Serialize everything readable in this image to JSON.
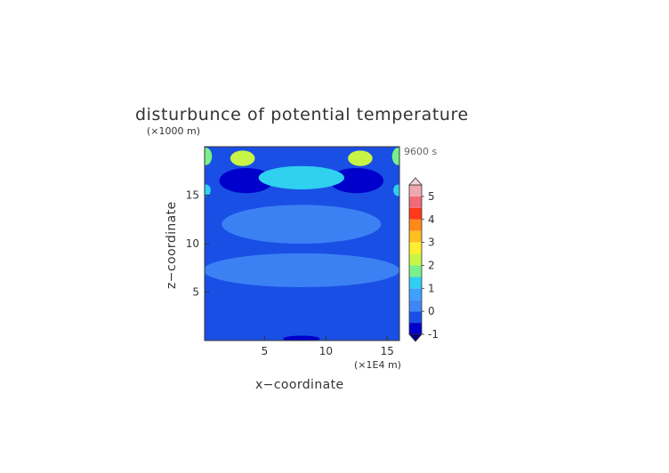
{
  "chart_data": {
    "type": "heatmap",
    "title": "disturbunce of potential temperature",
    "xlabel": "x−coordinate",
    "ylabel": "z−coordinate",
    "x_unit": "(×1E4 m)",
    "y_unit": "(×1000 m)",
    "time_label": "9600 s",
    "xlim": [
      0.1,
      16.0
    ],
    "ylim": [
      0,
      20.0
    ],
    "x_ticks": [
      5,
      10,
      15
    ],
    "y_ticks": [
      5,
      10,
      15
    ],
    "colorbar": {
      "levels": [
        -1,
        -0.5,
        0,
        0.5,
        1,
        1.5,
        2,
        2.5,
        3,
        3.5,
        4,
        4.5,
        5
      ],
      "tick_labels": [
        "-1",
        "0",
        "1",
        "2",
        "3",
        "4",
        "5"
      ],
      "tick_values": [
        -1,
        0,
        1,
        2,
        3,
        4,
        5
      ],
      "colors": [
        "#0000cc",
        "#1a4fe6",
        "#3f86f5",
        "#3ea1ff",
        "#2fd0f0",
        "#7af08a",
        "#c8f545",
        "#ffee30",
        "#ffc020",
        "#ff8a1a",
        "#ff3a18",
        "#f06a78",
        "#f0a8b0"
      ],
      "extend": "both"
    },
    "background_value": -0.4,
    "features": [
      {
        "kind": "band",
        "value": 0.25,
        "y0": 5.5,
        "y1": 9.0,
        "x_center": 8.0,
        "half_width": 8.0
      },
      {
        "kind": "band",
        "value": 0.25,
        "y0": 10.0,
        "y1": 14.0,
        "x_center": 8.0,
        "half_width": 6.5
      },
      {
        "kind": "blob",
        "value": -0.9,
        "x": 3.5,
        "y": 16.5,
        "rx": 2.2,
        "ry": 1.3
      },
      {
        "kind": "blob",
        "value": -0.9,
        "x": 12.5,
        "y": 16.5,
        "rx": 2.2,
        "ry": 1.3
      },
      {
        "kind": "blob",
        "value": 1.2,
        "x": 8.0,
        "y": 16.8,
        "rx": 3.5,
        "ry": 1.2
      },
      {
        "kind": "blob",
        "value": 2.3,
        "x": 3.2,
        "y": 18.8,
        "rx": 1.0,
        "ry": 0.8
      },
      {
        "kind": "blob",
        "value": 2.3,
        "x": 12.8,
        "y": 18.8,
        "rx": 1.0,
        "ry": 0.8
      },
      {
        "kind": "blob",
        "value": 1.5,
        "x": 0.2,
        "y": 19.0,
        "rx": 0.5,
        "ry": 0.9
      },
      {
        "kind": "blob",
        "value": 1.5,
        "x": 15.9,
        "y": 19.0,
        "rx": 0.5,
        "ry": 0.9
      },
      {
        "kind": "blob",
        "value": 1.0,
        "x": 0.2,
        "y": 15.5,
        "rx": 0.4,
        "ry": 0.6
      },
      {
        "kind": "blob",
        "value": 1.0,
        "x": 15.9,
        "y": 15.5,
        "rx": 0.4,
        "ry": 0.6
      },
      {
        "kind": "blob",
        "value": -0.9,
        "x": 8.0,
        "y": 0.2,
        "rx": 1.5,
        "ry": 0.3
      }
    ]
  }
}
